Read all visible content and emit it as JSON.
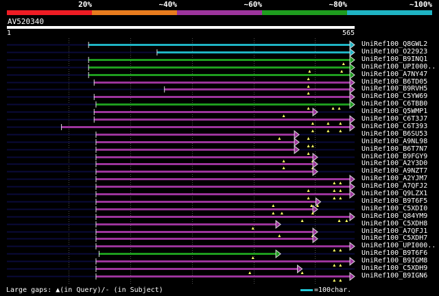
{
  "coverage_legend": {
    "colors": [
      "#ee1c24",
      "#e87c1e",
      "#9c349c",
      "#1e9c1e",
      "#1fb4c4"
    ],
    "labels": [
      "20%",
      "~40%",
      "~60%",
      "~80%",
      "~100%"
    ]
  },
  "query": {
    "name": "AV520340",
    "start": "1",
    "end": "565",
    "length": 565
  },
  "hits": [
    {
      "id": "UniRef100_Q8GWL2",
      "s": 133,
      "e": 565,
      "color": "#1fb4c4",
      "marks": []
    },
    {
      "id": "UniRef100_O22923",
      "s": 244,
      "e": 565,
      "color": "#1fb4c4",
      "marks": []
    },
    {
      "id": "UniRef100_B9INQ1",
      "s": 133,
      "e": 565,
      "color": "#1e9c1e",
      "marks": [
        547
      ]
    },
    {
      "id": "UniRef100_UPI000..",
      "s": 133,
      "e": 565,
      "color": "#1e9c1e",
      "marks": [
        492,
        544
      ]
    },
    {
      "id": "UniRef100_A7NY47",
      "s": 133,
      "e": 565,
      "color": "#1e9c1e",
      "marks": [
        490
      ]
    },
    {
      "id": "UniRef100_B6TD05",
      "s": 142,
      "e": 565,
      "color": "#9c349c",
      "marks": [
        490
      ]
    },
    {
      "id": "UniRef100_B9RVH5",
      "s": 256,
      "e": 565,
      "color": "#9c349c",
      "marks": [
        490
      ]
    },
    {
      "id": "UniRef100_C5YW69",
      "s": 142,
      "e": 565,
      "color": "#9c349c",
      "marks": []
    },
    {
      "id": "UniRef100_C6TBB0",
      "s": 145,
      "e": 565,
      "color": "#1e9c1e",
      "marks": [
        490,
        530,
        540
      ]
    },
    {
      "id": "UniRef100_Q5WMP1",
      "s": 142,
      "e": 505,
      "color": "#9c349c",
      "marks": [
        450
      ]
    },
    {
      "id": "UniRef100_C6T3J7",
      "s": 142,
      "e": 565,
      "color": "#9c349c",
      "marks": [
        497,
        522,
        542
      ]
    },
    {
      "id": "UniRef100_C6T393",
      "s": 89,
      "e": 565,
      "color": "#9c349c",
      "marks": [
        497,
        522,
        542
      ]
    },
    {
      "id": "UniRef100_B6SU53",
      "s": 145,
      "e": 475,
      "color": "#9c349c",
      "marks": [
        443,
        490
      ]
    },
    {
      "id": "UniRef100_A9NL98",
      "s": 145,
      "e": 475,
      "color": "#9c349c",
      "marks": [
        490,
        497
      ]
    },
    {
      "id": "UniRef100_B6T7N7",
      "s": 145,
      "e": 475,
      "color": "#9c349c",
      "marks": [
        490
      ]
    },
    {
      "id": "UniRef100_B9FGY9",
      "s": 145,
      "e": 505,
      "color": "#9c349c",
      "marks": [
        450,
        497
      ]
    },
    {
      "id": "UniRef100_A2Y3D0",
      "s": 145,
      "e": 505,
      "color": "#9c349c",
      "marks": [
        450,
        497
      ]
    },
    {
      "id": "UniRef100_A9NZT7",
      "s": 145,
      "e": 505,
      "color": "#9c349c",
      "marks": []
    },
    {
      "id": "UniRef100_A2YJM7",
      "s": 145,
      "e": 565,
      "color": "#9c349c",
      "marks": [
        532,
        542
      ]
    },
    {
      "id": "UniRef100_A7QFJ2",
      "s": 145,
      "e": 565,
      "color": "#9c349c",
      "marks": [
        490,
        532,
        542
      ]
    },
    {
      "id": "UniRef100_Q9LZX1",
      "s": 145,
      "e": 565,
      "color": "#9c349c",
      "marks": [
        490,
        532,
        542
      ]
    },
    {
      "id": "UniRef100_B9T6F5",
      "s": 145,
      "e": 510,
      "color": "#9c349c",
      "marks": [
        433,
        495,
        505
      ]
    },
    {
      "id": "UniRef100_C5XDI0",
      "s": 145,
      "e": 505,
      "color": "#9c349c",
      "marks": [
        433,
        447,
        497
      ]
    },
    {
      "id": "UniRef100_Q84YM9",
      "s": 145,
      "e": 565,
      "color": "#9c349c",
      "marks": [
        480,
        540,
        552
      ]
    },
    {
      "id": "UniRef100_C5XDH8",
      "s": 145,
      "e": 445,
      "color": "#9c349c",
      "marks": [
        400
      ]
    },
    {
      "id": "UniRef100_A7QFJ1",
      "s": 145,
      "e": 505,
      "color": "#9c349c",
      "marks": [
        443,
        497
      ]
    },
    {
      "id": "UniRef100_C5XDH7",
      "s": 145,
      "e": 505,
      "color": "#9c349c",
      "marks": []
    },
    {
      "id": "UniRef100_UPI000..",
      "s": 145,
      "e": 565,
      "color": "#9c349c",
      "marks": [
        532,
        542
      ]
    },
    {
      "id": "UniRef100_B9T6F6",
      "s": 150,
      "e": 445,
      "color": "#1e9c1e",
      "marks": [
        400
      ]
    },
    {
      "id": "UniRef100_B9IGM8",
      "s": 145,
      "e": 565,
      "color": "#9c349c",
      "marks": [
        532,
        542
      ]
    },
    {
      "id": "UniRef100_C5XDH9",
      "s": 145,
      "e": 480,
      "color": "#9c349c",
      "marks": [
        395,
        480
      ]
    },
    {
      "id": "UniRef100_B9IGN6",
      "s": 145,
      "e": 565,
      "color": "#9c349c",
      "marks": [
        532,
        542
      ]
    }
  ],
  "legend": {
    "text": "Large gaps: ▲(in Query)/- (in Subject)"
  },
  "scale": {
    "text": "=100char."
  }
}
